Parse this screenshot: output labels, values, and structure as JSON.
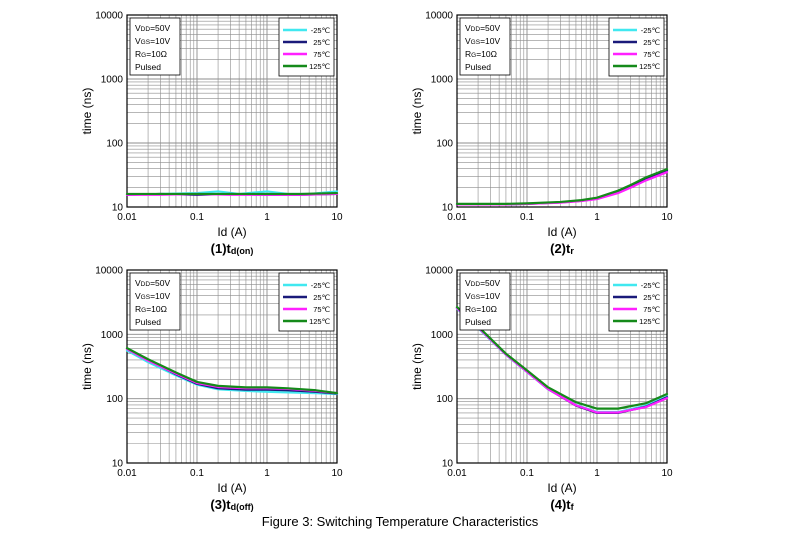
{
  "figure_caption": "Figure 3: Switching Temperature Characteristics",
  "colors": {
    "-25C": "#40e8f0",
    "25C": "#1a1a7a",
    "75C": "#ff20ff",
    "125C": "#158a1a",
    "grid": "#8c8c8c"
  },
  "chart_data": [
    {
      "type": "line",
      "id": "td_on",
      "caption_main": "(1)t",
      "caption_sub": "d(on)",
      "xlabel": "Id (A)",
      "ylabel": "time (ns)",
      "xscale": "log",
      "yscale": "log",
      "xlim": [
        0.01,
        10
      ],
      "ylim": [
        10,
        10000
      ],
      "xticks": [
        "0.01",
        "0.1",
        "1",
        "10"
      ],
      "yticks": [
        "10",
        "100",
        "1000",
        "10000"
      ],
      "grid": true,
      "conditions": [
        {
          "main": "V",
          "sub": "DD",
          "rest": "=50V"
        },
        {
          "main": "V",
          "sub": "GS",
          "rest": "=10V"
        },
        {
          "main": "R",
          "sub": "G",
          "rest": "=10Ω"
        },
        {
          "main": "Pulsed",
          "sub": "",
          "rest": ""
        }
      ],
      "legend": {
        "position": "top-right",
        "entries": [
          "-25℃",
          "25℃",
          "75℃",
          "125℃"
        ]
      },
      "series": [
        {
          "name": "-25℃",
          "color": "#40e8f0",
          "x": [
            0.01,
            0.03,
            0.1,
            0.2,
            0.4,
            1,
            2,
            4,
            10
          ],
          "y": [
            15.5,
            16,
            16.5,
            17.5,
            16,
            17.5,
            16,
            16,
            17.5
          ]
        },
        {
          "name": "25℃",
          "color": "#1a1a7a",
          "x": [
            0.01,
            0.03,
            0.1,
            0.3,
            1,
            3,
            10
          ],
          "y": [
            15.5,
            16,
            15.5,
            16,
            15.5,
            15.5,
            16
          ]
        },
        {
          "name": "75℃",
          "color": "#ff20ff",
          "x": [
            0.01,
            0.03,
            0.1,
            0.3,
            1,
            3,
            10
          ],
          "y": [
            15.5,
            15.5,
            16,
            15.5,
            15.5,
            15.5,
            16
          ]
        },
        {
          "name": "125℃",
          "color": "#158a1a",
          "x": [
            0.01,
            0.03,
            0.1,
            0.3,
            1,
            3,
            10
          ],
          "y": [
            16,
            16,
            16,
            16,
            16,
            16,
            16.5
          ]
        }
      ]
    },
    {
      "type": "line",
      "id": "tr",
      "caption_main": "(2)t",
      "caption_sub": "r",
      "xlabel": "Id (A)",
      "ylabel": "time (ns)",
      "xscale": "log",
      "yscale": "log",
      "xlim": [
        0.01,
        10
      ],
      "ylim": [
        10,
        10000
      ],
      "xticks": [
        "0.01",
        "0.1",
        "1",
        "10"
      ],
      "yticks": [
        "10",
        "100",
        "1000",
        "10000"
      ],
      "grid": true,
      "conditions": [
        {
          "main": "V",
          "sub": "DD",
          "rest": "=50V"
        },
        {
          "main": "V",
          "sub": "GS",
          "rest": "=10V"
        },
        {
          "main": "R",
          "sub": "G",
          "rest": "=10Ω"
        },
        {
          "main": "Pulsed",
          "sub": "",
          "rest": ""
        }
      ],
      "legend": {
        "position": "top-right",
        "entries": [
          "-25℃",
          "25℃",
          "75℃",
          "125℃"
        ]
      },
      "series": [
        {
          "name": "-25℃",
          "color": "#40e8f0",
          "x": [
            0.01,
            0.05,
            0.1,
            0.3,
            0.6,
            1,
            2,
            3,
            5,
            10
          ],
          "y": [
            11,
            11,
            11.3,
            11.8,
            12.5,
            13.5,
            17,
            21,
            27,
            36
          ]
        },
        {
          "name": "25℃",
          "color": "#1a1a7a",
          "x": [
            0.01,
            0.05,
            0.1,
            0.3,
            0.6,
            1,
            2,
            3,
            5,
            10
          ],
          "y": [
            11,
            11,
            11.2,
            11.8,
            12.5,
            13.5,
            17,
            21,
            28,
            37
          ]
        },
        {
          "name": "75℃",
          "color": "#ff20ff",
          "x": [
            0.01,
            0.05,
            0.1,
            0.3,
            0.6,
            1,
            2,
            3,
            5,
            10
          ],
          "y": [
            11,
            11,
            11.2,
            11.7,
            12.4,
            13.3,
            16.5,
            20,
            26,
            35
          ]
        },
        {
          "name": "125℃",
          "color": "#158a1a",
          "x": [
            0.01,
            0.05,
            0.1,
            0.3,
            0.6,
            1,
            2,
            3,
            5,
            10
          ],
          "y": [
            11.2,
            11.2,
            11.4,
            12,
            12.8,
            14,
            18,
            22,
            29,
            39
          ]
        }
      ]
    },
    {
      "type": "line",
      "id": "td_off",
      "caption_main": "(3)t",
      "caption_sub": "d(off)",
      "xlabel": "Id (A)",
      "ylabel": "time (ns)",
      "xscale": "log",
      "yscale": "log",
      "xlim": [
        0.01,
        10
      ],
      "ylim": [
        10,
        10000
      ],
      "xticks": [
        "0.01",
        "0.1",
        "1",
        "10"
      ],
      "yticks": [
        "10",
        "100",
        "1000",
        "10000"
      ],
      "grid": true,
      "conditions": [
        {
          "main": "V",
          "sub": "DD",
          "rest": "=50V"
        },
        {
          "main": "V",
          "sub": "GS",
          "rest": "=10V"
        },
        {
          "main": "R",
          "sub": "G",
          "rest": "=10Ω"
        },
        {
          "main": "Pulsed",
          "sub": "",
          "rest": ""
        }
      ],
      "legend": {
        "position": "top-right",
        "entries": [
          "-25℃",
          "25℃",
          "75℃",
          "125℃"
        ]
      },
      "series": [
        {
          "name": "-25℃",
          "color": "#40e8f0",
          "x": [
            0.01,
            0.02,
            0.05,
            0.1,
            0.2,
            0.5,
            1,
            2,
            5,
            10
          ],
          "y": [
            560,
            370,
            230,
            165,
            140,
            132,
            128,
            125,
            122,
            118
          ]
        },
        {
          "name": "25℃",
          "color": "#1a1a7a",
          "x": [
            0.01,
            0.02,
            0.05,
            0.1,
            0.2,
            0.5,
            1,
            2,
            5,
            10
          ],
          "y": [
            600,
            400,
            240,
            170,
            145,
            138,
            138,
            135,
            128,
            120
          ]
        },
        {
          "name": "75℃",
          "color": "#ff20ff",
          "x": [
            0.01,
            0.02,
            0.05,
            0.1,
            0.2,
            0.5,
            1,
            2,
            5,
            10
          ],
          "y": [
            590,
            390,
            245,
            175,
            152,
            145,
            145,
            142,
            132,
            122
          ]
        },
        {
          "name": "125℃",
          "color": "#158a1a",
          "x": [
            0.01,
            0.02,
            0.05,
            0.1,
            0.2,
            0.5,
            1,
            2,
            5,
            10
          ],
          "y": [
            610,
            410,
            255,
            182,
            158,
            150,
            150,
            145,
            135,
            122
          ]
        }
      ]
    },
    {
      "type": "line",
      "id": "tf",
      "caption_main": "(4)t",
      "caption_sub": "f",
      "xlabel": "Id (A)",
      "ylabel": "time (ns)",
      "xscale": "log",
      "yscale": "log",
      "xlim": [
        0.01,
        10
      ],
      "ylim": [
        10,
        10000
      ],
      "xticks": [
        "0.01",
        "0.1",
        "1",
        "10"
      ],
      "yticks": [
        "10",
        "100",
        "1000",
        "10000"
      ],
      "grid": true,
      "conditions": [
        {
          "main": "V",
          "sub": "DD",
          "rest": "=50V"
        },
        {
          "main": "V",
          "sub": "GS",
          "rest": "=10V"
        },
        {
          "main": "R",
          "sub": "G",
          "rest": "=10Ω"
        },
        {
          "main": "Pulsed",
          "sub": "",
          "rest": ""
        }
      ],
      "legend": {
        "position": "top-right",
        "entries": [
          "-25℃",
          "25℃",
          "75℃",
          "125℃"
        ]
      },
      "series": [
        {
          "name": "-25℃",
          "color": "#40e8f0",
          "x": [
            0.01,
            0.02,
            0.05,
            0.1,
            0.2,
            0.5,
            1,
            2,
            5,
            10
          ],
          "y": [
            2500,
            1250,
            480,
            260,
            140,
            80,
            62,
            62,
            78,
            108
          ]
        },
        {
          "name": "25℃",
          "color": "#1a1a7a",
          "x": [
            0.01,
            0.02,
            0.05,
            0.1,
            0.2,
            0.5,
            1,
            2,
            5,
            10
          ],
          "y": [
            2600,
            1300,
            490,
            265,
            142,
            78,
            60,
            60,
            75,
            105
          ]
        },
        {
          "name": "75℃",
          "color": "#ff20ff",
          "x": [
            0.01,
            0.02,
            0.05,
            0.1,
            0.2,
            0.5,
            1,
            2,
            5,
            10
          ],
          "y": [
            2550,
            1280,
            485,
            262,
            141,
            79,
            61,
            61,
            74,
            102
          ]
        },
        {
          "name": "125℃",
          "color": "#158a1a",
          "x": [
            0.01,
            0.02,
            0.05,
            0.1,
            0.2,
            0.5,
            1,
            2,
            5,
            10
          ],
          "y": [
            2650,
            1330,
            500,
            275,
            150,
            88,
            70,
            70,
            85,
            118
          ]
        }
      ]
    }
  ]
}
